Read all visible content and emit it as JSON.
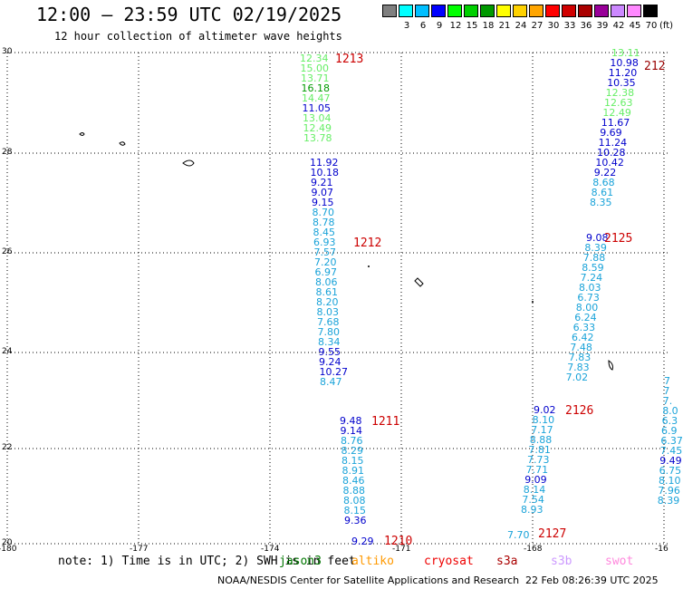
{
  "header": {
    "title": "12:00 – 23:59 UTC 02/19/2025",
    "subtitle": "12 hour collection of altimeter wave heights"
  },
  "color_scale": {
    "unit": "(ft)",
    "bins": [
      {
        "label": "",
        "color": "#7f7f7f"
      },
      {
        "label": "3",
        "color": "#00ffff"
      },
      {
        "label": "6",
        "color": "#00bfff"
      },
      {
        "label": "9",
        "color": "#0000ff"
      },
      {
        "label": "12",
        "color": "#00ff00"
      },
      {
        "label": "15",
        "color": "#00d000"
      },
      {
        "label": "18",
        "color": "#009900"
      },
      {
        "label": "21",
        "color": "#ffff00"
      },
      {
        "label": "24",
        "color": "#ffd200"
      },
      {
        "label": "27",
        "color": "#ffa500"
      },
      {
        "label": "30",
        "color": "#ff0000"
      },
      {
        "label": "33",
        "color": "#d00000"
      },
      {
        "label": "36",
        "color": "#aa0000"
      },
      {
        "label": "39",
        "color": "#990099"
      },
      {
        "label": "42",
        "color": "#cc88ff"
      },
      {
        "label": "45",
        "color": "#ff88ff"
      },
      {
        "label": "70",
        "color": "#000000"
      }
    ]
  },
  "map": {
    "lat_labels": [
      "30",
      "28",
      "26",
      "24",
      "22",
      "20"
    ],
    "lon_labels": [
      "-180",
      "-177",
      "-174",
      "-171",
      "-168",
      "-16"
    ],
    "passes": [
      {
        "id": "1213",
        "label_color": "#cc0000",
        "values": [
          {
            "v": "12.34",
            "c": "#66ee66"
          },
          {
            "v": "15.00",
            "c": "#66ee66"
          },
          {
            "v": "13.71",
            "c": "#66ee66"
          },
          {
            "v": "16.18",
            "c": "#009900"
          },
          {
            "v": "14.47",
            "c": "#66ee66"
          },
          {
            "v": "11.05",
            "c": "#0000cc"
          },
          {
            "v": "13.04",
            "c": "#66ee66"
          },
          {
            "v": "12.49",
            "c": "#66ee66"
          },
          {
            "v": "13.78",
            "c": "#66ee66"
          }
        ]
      },
      {
        "id": "1212",
        "values": [
          {
            "v": "11.92",
            "c": "#0000cc"
          },
          {
            "v": "10.18",
            "c": "#0000cc"
          },
          {
            "v": "9.21",
            "c": "#0000cc"
          },
          {
            "v": "9.07",
            "c": "#0000cc"
          },
          {
            "v": "9.15",
            "c": "#0000cc"
          },
          {
            "v": "8.70",
            "c": "#1aa3d9"
          },
          {
            "v": "8.78",
            "c": "#1aa3d9"
          },
          {
            "v": "8.45",
            "c": "#1aa3d9"
          },
          {
            "v": "6.93",
            "c": "#1aa3d9"
          },
          {
            "v": "7.57",
            "c": "#1aa3d9"
          },
          {
            "v": "7.20",
            "c": "#1aa3d9"
          },
          {
            "v": "6.97",
            "c": "#1aa3d9"
          },
          {
            "v": "8.06",
            "c": "#1aa3d9"
          },
          {
            "v": "8.61",
            "c": "#1aa3d9"
          },
          {
            "v": "8.20",
            "c": "#1aa3d9"
          },
          {
            "v": "8.03",
            "c": "#1aa3d9"
          },
          {
            "v": "7.68",
            "c": "#1aa3d9"
          },
          {
            "v": "7.80",
            "c": "#1aa3d9"
          },
          {
            "v": "8.34",
            "c": "#1aa3d9"
          },
          {
            "v": "9.55",
            "c": "#0000cc"
          },
          {
            "v": "9.24",
            "c": "#0000cc"
          },
          {
            "v": "10.27",
            "c": "#0000cc"
          },
          {
            "v": "8.47",
            "c": "#1aa3d9"
          }
        ]
      },
      {
        "id": "1211",
        "values": [
          {
            "v": "9.48",
            "c": "#0000cc"
          },
          {
            "v": "9.14",
            "c": "#0000cc"
          },
          {
            "v": "8.76",
            "c": "#1aa3d9"
          },
          {
            "v": "8.29",
            "c": "#1aa3d9"
          },
          {
            "v": "8.15",
            "c": "#1aa3d9"
          },
          {
            "v": "8.91",
            "c": "#1aa3d9"
          },
          {
            "v": "8.46",
            "c": "#1aa3d9"
          },
          {
            "v": "8.88",
            "c": "#1aa3d9"
          },
          {
            "v": "8.08",
            "c": "#1aa3d9"
          },
          {
            "v": "8.15",
            "c": "#1aa3d9"
          },
          {
            "v": "9.36",
            "c": "#0000cc"
          }
        ]
      },
      {
        "id": "1210",
        "values": [
          {
            "v": "9.29",
            "c": "#0000cc"
          }
        ]
      },
      {
        "id": "2124",
        "label_text": "212",
        "values": [
          {
            "v": "13.11",
            "c": "#66ee66"
          },
          {
            "v": "10.98",
            "c": "#0000cc"
          },
          {
            "v": "11.20",
            "c": "#0000cc"
          },
          {
            "v": "10.35",
            "c": "#0000cc"
          },
          {
            "v": "12.38",
            "c": "#66ee66"
          },
          {
            "v": "12.63",
            "c": "#66ee66"
          },
          {
            "v": "12.49",
            "c": "#66ee66"
          },
          {
            "v": "11.67",
            "c": "#0000cc"
          },
          {
            "v": "9.69",
            "c": "#0000cc"
          },
          {
            "v": "11.24",
            "c": "#0000cc"
          },
          {
            "v": "10.28",
            "c": "#0000cc"
          },
          {
            "v": "10.42",
            "c": "#0000cc"
          },
          {
            "v": "9.22",
            "c": "#0000cc"
          },
          {
            "v": "8.68",
            "c": "#1aa3d9"
          },
          {
            "v": "8.61",
            "c": "#1aa3d9"
          },
          {
            "v": "8.35",
            "c": "#1aa3d9"
          }
        ]
      },
      {
        "id": "2125",
        "values": [
          {
            "v": "9.08",
            "c": "#0000cc"
          },
          {
            "v": "8.39",
            "c": "#1aa3d9"
          },
          {
            "v": "7.88",
            "c": "#1aa3d9"
          },
          {
            "v": "8.59",
            "c": "#1aa3d9"
          },
          {
            "v": "7.24",
            "c": "#1aa3d9"
          },
          {
            "v": "8.03",
            "c": "#1aa3d9"
          },
          {
            "v": "6.73",
            "c": "#1aa3d9"
          },
          {
            "v": "8.00",
            "c": "#1aa3d9"
          },
          {
            "v": "6.24",
            "c": "#1aa3d9"
          },
          {
            "v": "6.33",
            "c": "#1aa3d9"
          },
          {
            "v": "6.42",
            "c": "#1aa3d9"
          },
          {
            "v": "7.48",
            "c": "#1aa3d9"
          },
          {
            "v": "7.83",
            "c": "#1aa3d9"
          },
          {
            "v": "7.83",
            "c": "#1aa3d9"
          },
          {
            "v": "7.02",
            "c": "#1aa3d9"
          }
        ]
      },
      {
        "id": "2126",
        "values": [
          {
            "v": "9.02",
            "c": "#0000cc"
          },
          {
            "v": "8.10",
            "c": "#1aa3d9"
          },
          {
            "v": "7.17",
            "c": "#1aa3d9"
          },
          {
            "v": "8.88",
            "c": "#1aa3d9"
          },
          {
            "v": "7.81",
            "c": "#1aa3d9"
          },
          {
            "v": "7.73",
            "c": "#1aa3d9"
          },
          {
            "v": "7.71",
            "c": "#1aa3d9"
          },
          {
            "v": "9.09",
            "c": "#0000cc"
          },
          {
            "v": "8.14",
            "c": "#1aa3d9"
          },
          {
            "v": "7.54",
            "c": "#1aa3d9"
          },
          {
            "v": "8.93",
            "c": "#1aa3d9"
          }
        ]
      },
      {
        "id": "2127",
        "values": [
          {
            "v": "7.70",
            "c": "#1aa3d9"
          }
        ]
      },
      {
        "id": "edge",
        "values": [
          {
            "v": "7",
            "c": "#1aa3d9"
          },
          {
            "v": "7",
            "c": "#1aa3d9"
          },
          {
            "v": "7.",
            "c": "#1aa3d9"
          },
          {
            "v": "8.0",
            "c": "#1aa3d9"
          },
          {
            "v": "6.3",
            "c": "#1aa3d9"
          },
          {
            "v": "6.9",
            "c": "#1aa3d9"
          },
          {
            "v": "6.37",
            "c": "#1aa3d9"
          },
          {
            "v": "7.45",
            "c": "#1aa3d9"
          },
          {
            "v": "9.49",
            "c": "#0000cc"
          },
          {
            "v": "6.75",
            "c": "#1aa3d9"
          },
          {
            "v": "8.10",
            "c": "#1aa3d9"
          },
          {
            "v": "7.96",
            "c": "#1aa3d9"
          },
          {
            "v": "8.39",
            "c": "#1aa3d9"
          }
        ]
      }
    ]
  },
  "note": {
    "text": "note: 1) Time is in UTC; 2) SWH is in feet",
    "satellites": [
      {
        "name": "jason3",
        "color": "#007700"
      },
      {
        "name": "altiko",
        "color": "#ff9900"
      },
      {
        "name": "cryosat",
        "color": "#ee0000"
      },
      {
        "name": "s3a",
        "color": "#aa0000"
      },
      {
        "name": "s3b",
        "color": "#cc99ff"
      },
      {
        "name": "swot",
        "color": "#ff88dd"
      }
    ]
  },
  "footer": {
    "credit": "NOAA/NESDIS Center for Satellite Applications and Research",
    "generated": "22 Feb 08:26:39 UTC 2025"
  }
}
